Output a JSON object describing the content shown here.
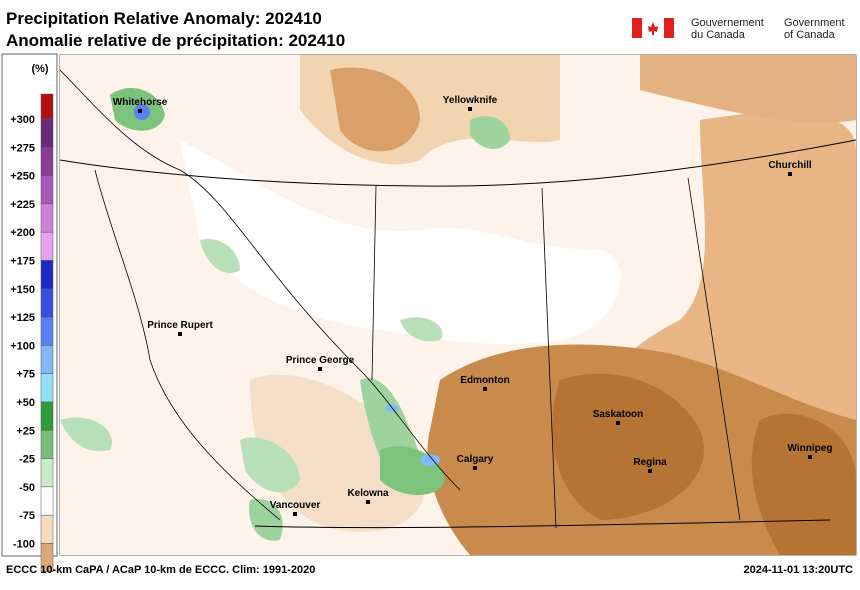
{
  "header": {
    "title_en": "Precipitation Relative Anomaly: 202410",
    "title_fr": "Anomalie relative de précipitation: 202410",
    "gov_fr": [
      "Gouvernement",
      "du Canada"
    ],
    "gov_en": [
      "Government",
      "of Canada"
    ]
  },
  "legend": {
    "unit": "(%)",
    "top_color": "#b01010",
    "items": [
      {
        "label": "+300",
        "color": "#6a2a7a"
      },
      {
        "label": "+275",
        "color": "#8a3c96"
      },
      {
        "label": "+250",
        "color": "#a858b8"
      },
      {
        "label": "+225",
        "color": "#d080d8"
      },
      {
        "label": "+200",
        "color": "#e8a0f0"
      },
      {
        "label": "+175",
        "color": "#2028c8"
      },
      {
        "label": "+150",
        "color": "#3850e0"
      },
      {
        "label": "+125",
        "color": "#5880f0"
      },
      {
        "label": "+100",
        "color": "#80b8f8"
      },
      {
        "label": "+75",
        "color": "#90e0f8"
      },
      {
        "label": "+50",
        "color": "#309a38"
      },
      {
        "label": "+25",
        "color": "#78c078"
      },
      {
        "label": "-25",
        "color": "#c8ecc8"
      },
      {
        "label": "-50",
        "color": "#ffffff"
      },
      {
        "label": "-75",
        "color": "#f8dcc0"
      },
      {
        "label": "-100",
        "color": "#dca878"
      }
    ],
    "bottom_color": "#b07030"
  },
  "cities": [
    "Whitehorse",
    "Yellowknife",
    "Churchill",
    "Prince Rupert",
    "Prince George",
    "Edmonton",
    "Saskatoon",
    "Calgary",
    "Regina",
    "Winnipeg",
    "Kelowna",
    "Vancouver"
  ],
  "footer": {
    "left": "ECCC 10-km CaPA / ACaP 10-km de ECCC. Clim: 1991-2020",
    "right": "2024-11-01 13:20UTC"
  }
}
